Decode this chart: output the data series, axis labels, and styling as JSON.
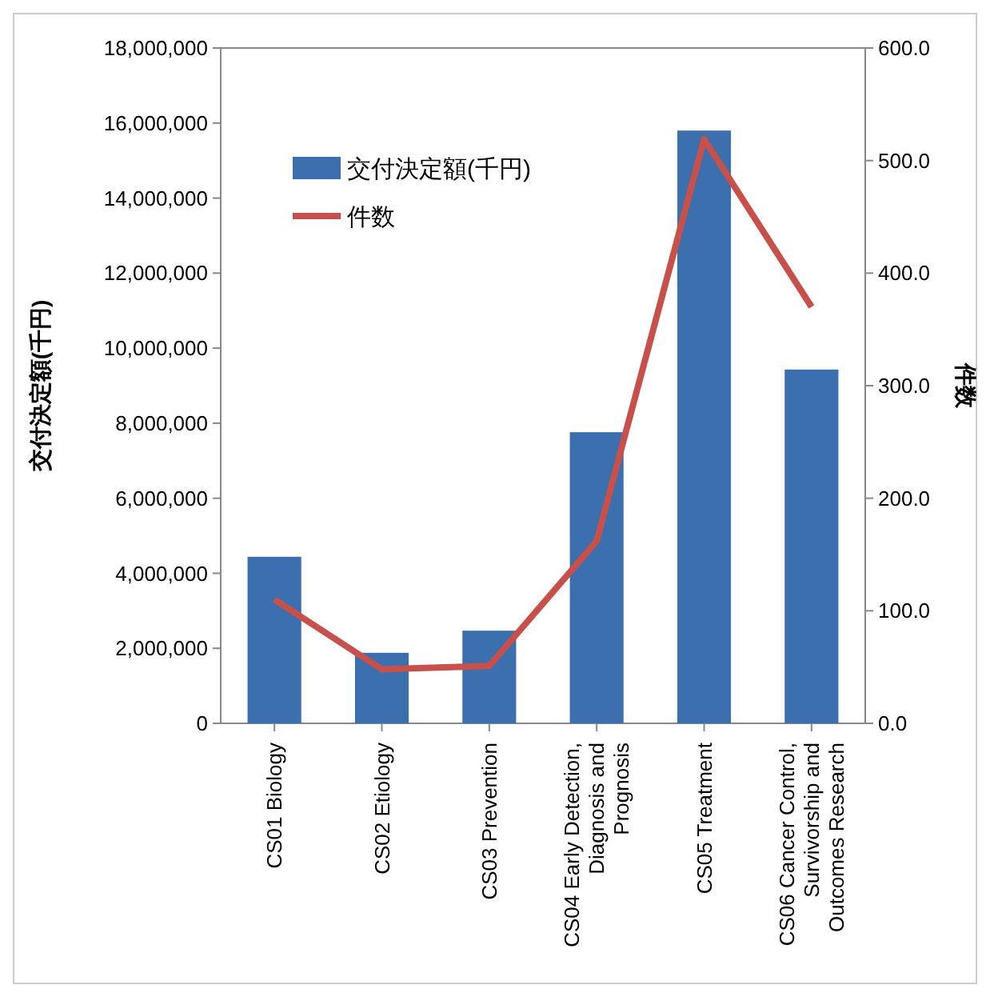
{
  "chart_data": {
    "type": "bar",
    "categories": [
      "CS01 Biology",
      "CS02 Etiology",
      "CS03 Prevention",
      "CS04 Early Detection, Diagnosis and Prognosis",
      "CS05 Treatment",
      "CS06 Cancer Control, Survivorship and Outcomes Research"
    ],
    "series": [
      {
        "name": "交付決定額(千円)",
        "color": "#3b6fae",
        "values": [
          4440000,
          1880000,
          2470000,
          7760000,
          15800000,
          9430000
        ]
      },
      {
        "name": "件数",
        "type": "line",
        "axis": "y2",
        "color": "#c8504b",
        "values": [
          110,
          48,
          51,
          162,
          519,
          370
        ]
      }
    ],
    "ylabel": "交付決定額(千円)",
    "y2label": "件数",
    "ylim": [
      0,
      18000000
    ],
    "yticks": [
      {
        "value": 0,
        "label": "0"
      },
      {
        "value": 2000000,
        "label": "2,000,000"
      },
      {
        "value": 4000000,
        "label": "4,000,000"
      },
      {
        "value": 6000000,
        "label": "6,000,000"
      },
      {
        "value": 8000000,
        "label": "8,000,000"
      },
      {
        "value": 10000000,
        "label": "10,000,000"
      },
      {
        "value": 12000000,
        "label": "12,000,000"
      },
      {
        "value": 14000000,
        "label": "14,000,000"
      },
      {
        "value": 16000000,
        "label": "16,000,000"
      },
      {
        "value": 18000000,
        "label": "18,000,000"
      }
    ],
    "y2lim": [
      0,
      600
    ],
    "y2ticks": [
      {
        "value": 0,
        "label": "0.0"
      },
      {
        "value": 100,
        "label": "100.0"
      },
      {
        "value": 200,
        "label": "200.0"
      },
      {
        "value": 300,
        "label": "300.0"
      },
      {
        "value": 400,
        "label": "400.0"
      },
      {
        "value": 500,
        "label": "500.0"
      },
      {
        "value": 600,
        "label": "600.0"
      }
    ],
    "legend": "top left",
    "grid": false,
    "marker": "none"
  }
}
